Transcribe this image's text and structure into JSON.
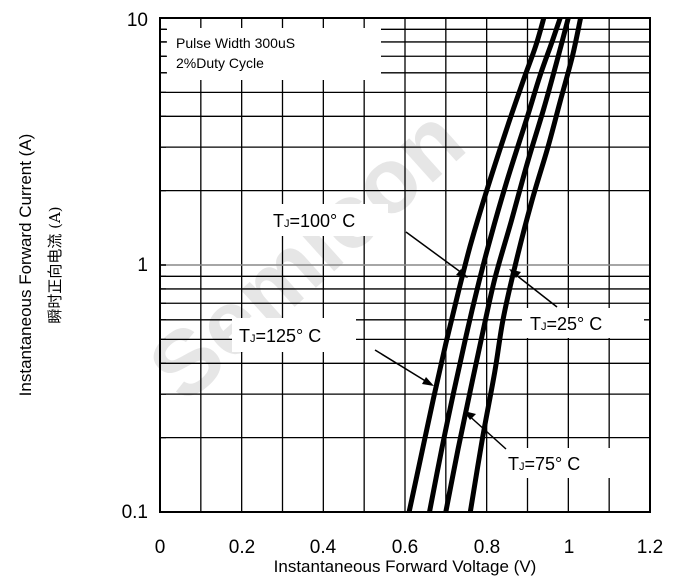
{
  "watermark": "Semicon",
  "chart_data": {
    "type": "line",
    "title": "",
    "xlabel": "Instantaneous Forward Voltage (V)",
    "ylabel": "Instantaneous Forward Current (A)",
    "ylabel_cn": "瞬时正向电流 (A)",
    "xlim": [
      0,
      1.2
    ],
    "ylim": [
      0.1,
      10
    ],
    "yscale": "log",
    "grid": true,
    "x_ticks": [
      "0",
      "0.2",
      "0.4",
      "0.6",
      "0.8",
      "1",
      "1.2"
    ],
    "y_ticks": [
      "0.1",
      "1",
      "10"
    ],
    "note_lines": [
      "Pulse Width 300uS",
      "2%Duty Cycle"
    ],
    "series": [
      {
        "name": "TJ=125° C",
        "x": [
          0.61,
          0.64,
          0.67,
          0.7,
          0.73,
          0.76,
          0.8,
          0.85,
          0.89,
          0.92,
          0.94
        ],
        "y": [
          0.1,
          0.17,
          0.29,
          0.48,
          0.77,
          1.2,
          2.0,
          3.6,
          5.6,
          7.7,
          10
        ]
      },
      {
        "name": "TJ=100° C",
        "x": [
          0.66,
          0.69,
          0.72,
          0.75,
          0.78,
          0.81,
          0.85,
          0.9,
          0.93,
          0.96,
          0.98
        ],
        "y": [
          0.1,
          0.18,
          0.31,
          0.52,
          0.84,
          1.3,
          2.2,
          4.0,
          5.8,
          8.0,
          10
        ]
      },
      {
        "name": "TJ=75° C",
        "x": [
          0.7,
          0.73,
          0.76,
          0.79,
          0.82,
          0.86,
          0.9,
          0.94,
          0.97,
          1.0
        ],
        "y": [
          0.1,
          0.18,
          0.31,
          0.53,
          0.88,
          1.5,
          2.6,
          4.3,
          6.5,
          10
        ]
      },
      {
        "name": "TJ=25° C",
        "x": [
          0.76,
          0.79,
          0.82,
          0.84,
          0.87,
          0.91,
          0.95,
          0.98,
          1.01,
          1.03
        ],
        "y": [
          0.1,
          0.2,
          0.37,
          0.6,
          1.0,
          1.8,
          3.0,
          4.6,
          7.0,
          10
        ]
      }
    ],
    "annotations": [
      {
        "main": "T",
        "sub": "J",
        "rest": "=100° C"
      },
      {
        "main": "T",
        "sub": "J",
        "rest": "=125° C"
      },
      {
        "main": "T",
        "sub": "J",
        "rest": "=25° C"
      },
      {
        "main": "T",
        "sub": "J",
        "rest": "=75° C"
      }
    ]
  }
}
